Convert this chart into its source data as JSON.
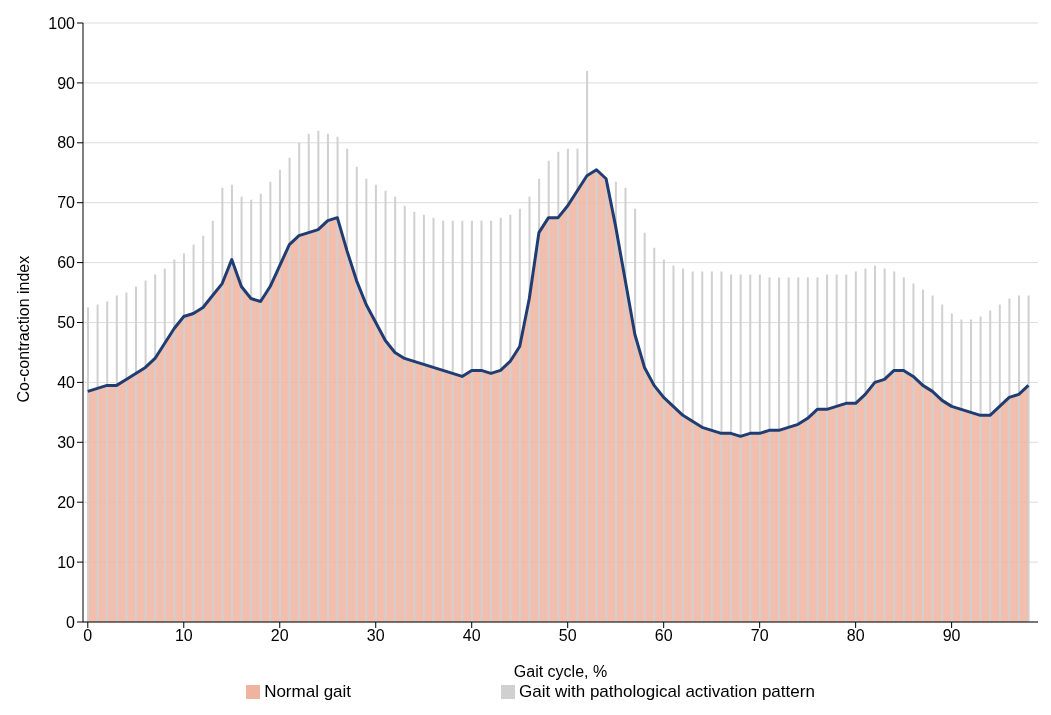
{
  "chart_data": {
    "type": "bar",
    "xlabel": "Gait cycle, %",
    "ylabel": "Co-contraction index",
    "x": [
      0,
      1,
      2,
      3,
      4,
      5,
      6,
      7,
      8,
      9,
      10,
      11,
      12,
      13,
      14,
      15,
      16,
      17,
      18,
      19,
      20,
      21,
      22,
      23,
      24,
      25,
      26,
      27,
      28,
      29,
      30,
      31,
      32,
      33,
      34,
      35,
      36,
      37,
      38,
      39,
      40,
      41,
      42,
      43,
      44,
      45,
      46,
      47,
      48,
      49,
      50,
      51,
      52,
      53,
      54,
      55,
      56,
      57,
      58,
      59,
      60,
      61,
      62,
      63,
      64,
      65,
      66,
      67,
      68,
      69,
      70,
      71,
      72,
      73,
      74,
      75,
      76,
      77,
      78,
      79,
      80,
      81,
      82,
      83,
      84,
      85,
      86,
      87,
      88,
      89,
      90,
      91,
      92,
      93,
      94,
      95,
      96,
      97,
      98
    ],
    "series": [
      {
        "name": "Gait with pathological activation pattern",
        "color": "#d0d0d0",
        "values": [
          52.5,
          53,
          53.5,
          54.5,
          55,
          56,
          57,
          58,
          59,
          60.5,
          61.5,
          63,
          64.5,
          67,
          72.5,
          73,
          71,
          70.5,
          71.5,
          73.5,
          75.5,
          77.5,
          80,
          81.5,
          82,
          81.5,
          81,
          79,
          76,
          74,
          73,
          72,
          71,
          69.5,
          68.5,
          68,
          67.5,
          67,
          67,
          67,
          67,
          67,
          67,
          67.5,
          68,
          69,
          71,
          74,
          77,
          78.5,
          79,
          79,
          92,
          75,
          73.5,
          73.5,
          72.5,
          69,
          65,
          62.5,
          60.5,
          59.5,
          59,
          58.5,
          58.5,
          58.5,
          58.5,
          58,
          58,
          58,
          58,
          57.5,
          57.5,
          57.5,
          57.5,
          57.5,
          57.5,
          58,
          58,
          58,
          58.5,
          59,
          59.5,
          59,
          58.5,
          57.5,
          56.5,
          55.5,
          54.5,
          53,
          51.5,
          50.5,
          50.5,
          51,
          52,
          53,
          54,
          54.5,
          54.5
        ]
      },
      {
        "name": "Normal gait",
        "type": "area",
        "color": "#f0b3a0",
        "values": [
          38.5,
          39,
          39.5,
          39.5,
          40.5,
          41.5,
          42.5,
          44,
          46.5,
          49,
          51,
          51.5,
          52.5,
          54.5,
          56.5,
          60.5,
          56,
          54,
          53.5,
          56,
          59.5,
          63,
          64.5,
          65,
          65.5,
          67,
          67.5,
          62,
          57,
          53,
          50,
          47,
          45,
          44,
          43.5,
          43,
          42.5,
          42,
          41.5,
          41,
          42,
          42,
          41.5,
          42,
          43.5,
          46,
          54,
          65,
          67.5,
          67.5,
          69.5,
          72,
          74.5,
          75.5,
          74,
          66,
          57,
          48,
          42.5,
          39.5,
          37.5,
          36,
          34.5,
          33.5,
          32.5,
          32,
          31.5,
          31.5,
          31,
          31.5,
          31.5,
          32,
          32,
          32.5,
          33,
          34,
          35.5,
          35.5,
          36,
          36.5,
          36.5,
          38,
          40,
          40.5,
          42,
          42,
          41,
          39.5,
          38.5,
          37,
          36,
          35.5,
          35,
          34.5,
          34.5,
          36,
          37.5,
          38,
          39.5
        ]
      },
      {
        "type": "line",
        "color": "#1f3d73",
        "values": [
          38.5,
          39,
          39.5,
          39.5,
          40.5,
          41.5,
          42.5,
          44,
          46.5,
          49,
          51,
          51.5,
          52.5,
          54.5,
          56.5,
          60.5,
          56,
          54,
          53.5,
          56,
          59.5,
          63,
          64.5,
          65,
          65.5,
          67,
          67.5,
          62,
          57,
          53,
          50,
          47,
          45,
          44,
          43.5,
          43,
          42.5,
          42,
          41.5,
          41,
          42,
          42,
          41.5,
          42,
          43.5,
          46,
          54,
          65,
          67.5,
          67.5,
          69.5,
          72,
          74.5,
          75.5,
          74,
          66,
          57,
          48,
          42.5,
          39.5,
          37.5,
          36,
          34.5,
          33.5,
          32.5,
          32,
          31.5,
          31.5,
          31,
          31.5,
          31.5,
          32,
          32,
          32.5,
          33,
          34,
          35.5,
          35.5,
          36,
          36.5,
          36.5,
          38,
          40,
          40.5,
          42,
          42,
          41,
          39.5,
          38.5,
          37,
          36,
          35.5,
          35,
          34.5,
          34.5,
          36,
          37.5,
          38,
          39.5
        ]
      }
    ],
    "xlim": [
      -0.5,
      99
    ],
    "xticks": [
      0,
      10,
      20,
      30,
      40,
      50,
      60,
      70,
      80,
      90
    ],
    "ylim": [
      0,
      100
    ],
    "yticks": [
      0,
      10,
      20,
      30,
      40,
      50,
      60,
      70,
      80,
      90,
      100
    ],
    "grid": "y",
    "legend": "bottom"
  }
}
